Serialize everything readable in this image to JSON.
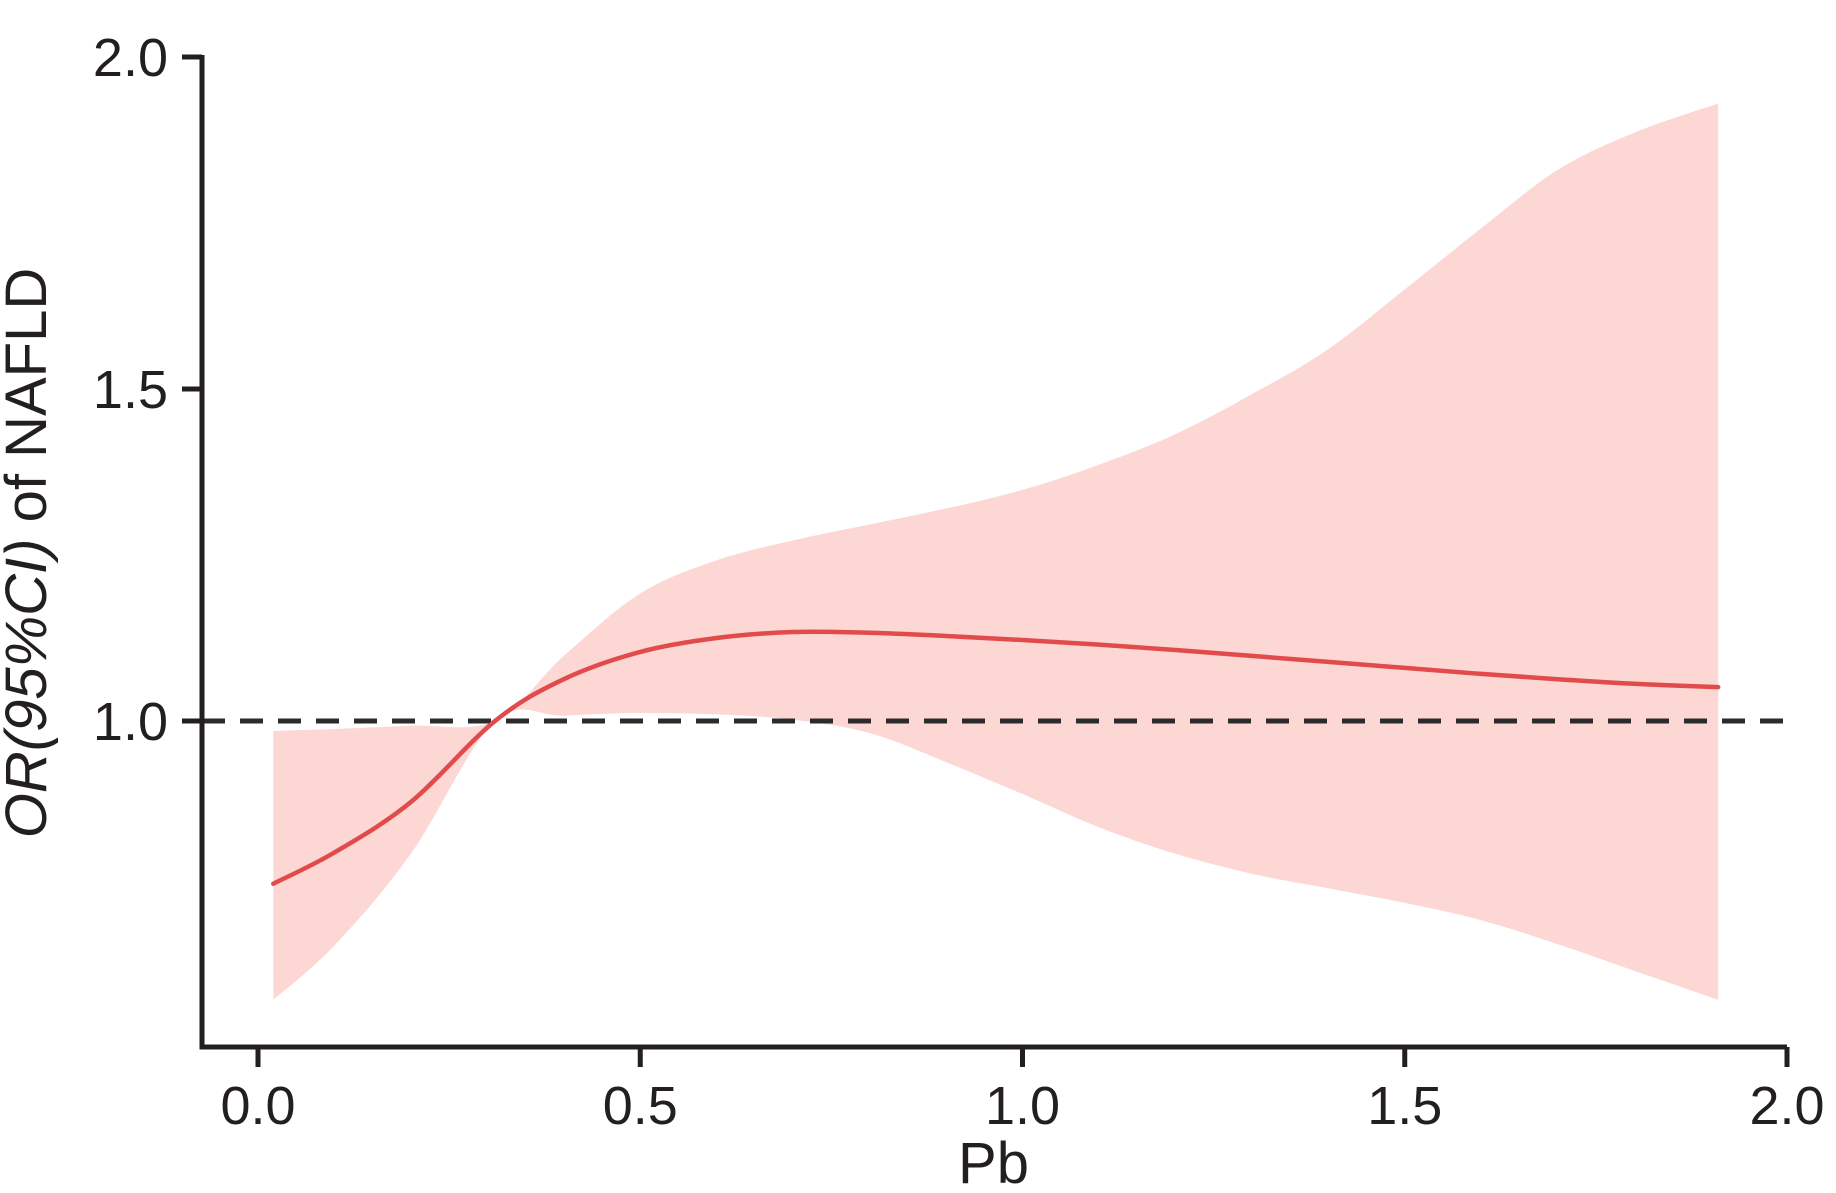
{
  "chart_data": {
    "type": "line",
    "title": "",
    "xlabel": "Pb",
    "ylabel": "OR(95%CI) of NAFLD",
    "ylabel_parts": [
      {
        "text": "OR(95%CI)",
        "italic": true
      },
      {
        "text": " of NAFLD",
        "italic": false
      }
    ],
    "x_tick_labels": [
      "0.0",
      "0.5",
      "1.0",
      "1.5",
      "2.0"
    ],
    "x_ticks": [
      0.0,
      0.5,
      1.0,
      1.5,
      2.0
    ],
    "y_tick_labels": [
      "1.0",
      "1.5",
      "2.0"
    ],
    "y_ticks": [
      1.0,
      1.5,
      2.0
    ],
    "xlim": [
      -0.073,
      2.0
    ],
    "ylim": [
      0.509,
      2.003
    ],
    "grid": false,
    "legend": false,
    "reference_line_y": 1.0,
    "x": [
      0.02,
      0.1,
      0.2,
      0.31,
      0.4,
      0.5,
      0.6,
      0.7,
      0.8,
      0.9,
      1.0,
      1.1,
      1.2,
      1.3,
      1.4,
      1.5,
      1.6,
      1.7,
      1.8,
      1.91
    ],
    "series": [
      {
        "name": "OR",
        "values": [
          0.755,
          0.802,
          0.878,
          1.0,
          1.063,
          1.104,
          1.125,
          1.134,
          1.133,
          1.128,
          1.122,
          1.115,
          1.107,
          1.098,
          1.089,
          1.08,
          1.071,
          1.063,
          1.056,
          1.051
        ]
      },
      {
        "name": "95% CI lower",
        "values": [
          0.58,
          0.662,
          0.8,
          1.0,
          1.008,
          1.012,
          1.01,
          1.002,
          0.982,
          0.938,
          0.89,
          0.84,
          0.8,
          0.77,
          0.748,
          0.726,
          0.7,
          0.664,
          0.624,
          0.58
        ]
      },
      {
        "name": "95% CI upper",
        "values": [
          0.985,
          0.988,
          0.993,
          1.0,
          1.098,
          1.192,
          1.242,
          1.272,
          1.296,
          1.32,
          1.348,
          1.386,
          1.432,
          1.492,
          1.56,
          1.65,
          1.742,
          1.83,
          1.886,
          1.93
        ]
      }
    ],
    "colors": {
      "curve": "#e14b4b",
      "band": "#fcd7d4",
      "axis": "#231f20",
      "reference": "#2b2b2b",
      "background": "#ffffff"
    }
  }
}
